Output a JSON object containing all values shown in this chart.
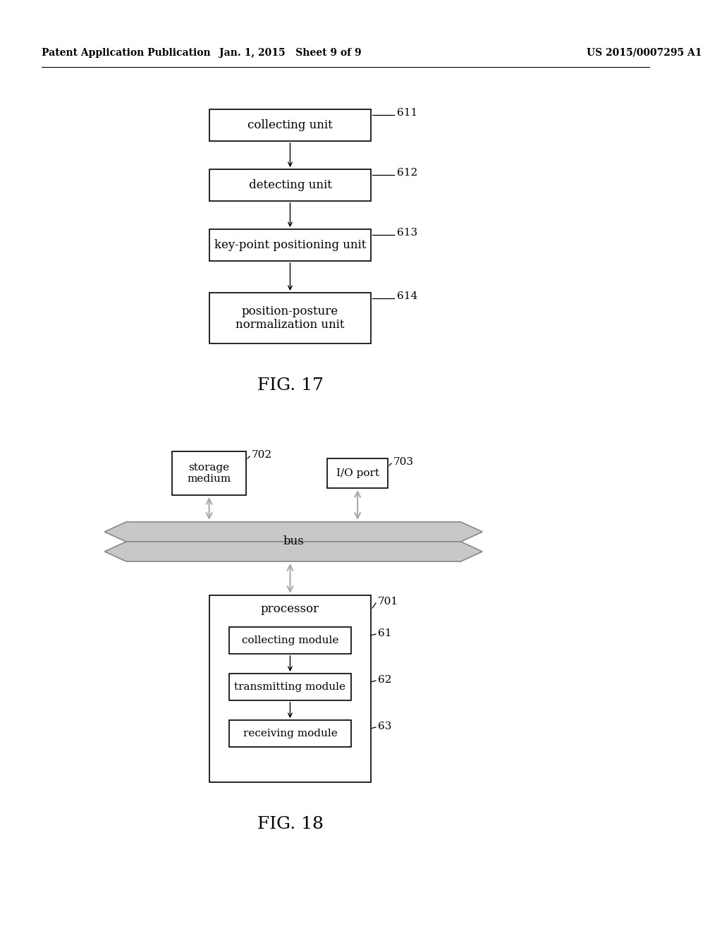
{
  "bg_color": "#ffffff",
  "header_left": "Patent Application Publication",
  "header_center": "Jan. 1, 2015   Sheet 9 of 9",
  "header_right": "US 2015/0007295 A1",
  "fig17": {
    "title": "FIG. 17",
    "boxes": [
      {
        "label": "collecting unit",
        "ref": "611"
      },
      {
        "label": "detecting unit",
        "ref": "612"
      },
      {
        "label": "key-point positioning unit",
        "ref": "613"
      },
      {
        "label": "position-posture\nnormalization unit",
        "ref": "614"
      }
    ]
  },
  "fig18": {
    "title": "FIG. 18",
    "storage_label": "storage\nmedium",
    "storage_ref": "702",
    "io_label": "I/O port",
    "io_ref": "703",
    "bus_label": "bus",
    "processor_label": "processor",
    "processor_ref": "701",
    "modules": [
      {
        "label": "collecting module",
        "ref": "61"
      },
      {
        "label": "transmitting module",
        "ref": "62"
      },
      {
        "label": "receiving module",
        "ref": "63"
      }
    ]
  }
}
